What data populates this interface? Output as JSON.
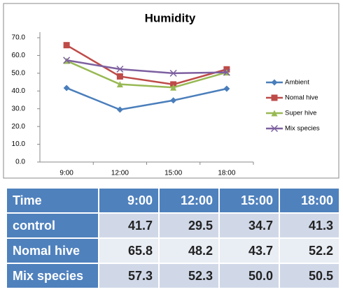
{
  "chart_data": {
    "type": "line",
    "title": "Humidity",
    "categories": [
      "9:00",
      "12:00",
      "15:00",
      "18:00"
    ],
    "series": [
      {
        "name": "Ambient",
        "color": "#4a7ebb",
        "marker": "diamond",
        "values": [
          41.7,
          29.5,
          34.7,
          41.3
        ]
      },
      {
        "name": "Nomal hive",
        "color": "#be4b48",
        "marker": "square",
        "values": [
          65.8,
          48.2,
          43.7,
          52.2
        ]
      },
      {
        "name": "Super hive",
        "color": "#98b954",
        "marker": "triangle",
        "values": [
          57,
          43.8,
          42,
          50.5
        ]
      },
      {
        "name": "Mix species",
        "color": "#7d60a0",
        "marker": "x",
        "values": [
          57.3,
          52.3,
          50.0,
          50.5
        ]
      }
    ],
    "ylim": [
      0,
      70
    ],
    "yticks": [
      {
        "value": 0,
        "label": "0.0"
      },
      {
        "value": 10,
        "label": "10.0"
      },
      {
        "value": 20,
        "label": "20.0"
      },
      {
        "value": 30,
        "label": "30.0"
      },
      {
        "value": 40,
        "label": "40.0"
      },
      {
        "value": 50,
        "label": "50.0"
      },
      {
        "value": 60,
        "label": "60.0"
      },
      {
        "value": 70,
        "label": "70.0"
      }
    ],
    "legend": "right"
  },
  "table": {
    "header": [
      "Time",
      "9:00",
      "12:00",
      "15:00",
      "18:00"
    ],
    "rows": [
      [
        "control",
        "41.7",
        "29.5",
        "34.7",
        "41.3"
      ],
      [
        "Nomal hive",
        "65.8",
        "48.2",
        "43.7",
        "52.2"
      ],
      [
        "Mix species",
        "57.3",
        "52.3",
        "50.0",
        "50.5"
      ]
    ]
  }
}
